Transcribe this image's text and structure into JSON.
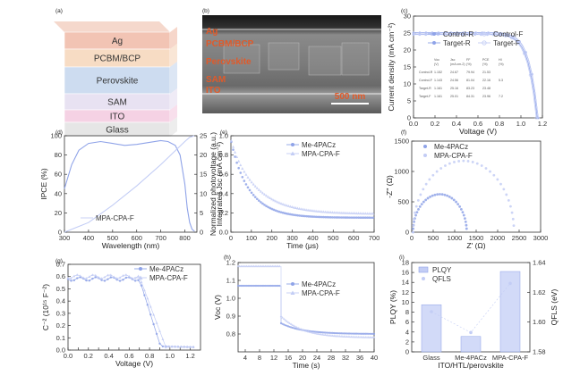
{
  "panel_labels": [
    "(a)",
    "(b)",
    "(c)",
    "(d)",
    "(e)",
    "(f)",
    "(g)",
    "(h)",
    "(i)"
  ],
  "colors": {
    "accent": "#8fa3e8",
    "accent_light": "#c3cdf5",
    "axis": "#333333",
    "sem_label": "#e05a2a"
  },
  "device_stack": {
    "layers": [
      {
        "name": "Ag",
        "color": "#f2c4b4"
      },
      {
        "name": "PCBM/BCP",
        "color": "#f7dcc4"
      },
      {
        "name": "Perovskite",
        "color": "#cddcf0"
      },
      {
        "name": "SAM",
        "color": "#e8e2f2"
      },
      {
        "name": "ITO",
        "color": "#f5d2e4"
      },
      {
        "name": "Glass",
        "color": "#e6e6e6"
      }
    ]
  },
  "sem": {
    "labels": [
      "Ag",
      "PCBM/BCP",
      "Perovskite",
      "SAM",
      "ITO"
    ],
    "scalebar": "500 nm"
  },
  "jv_table": {
    "headers": [
      "",
      "Voc",
      "Jsc",
      "FF",
      "PCE",
      "HI"
    ],
    "units": [
      "",
      "(V)",
      "(mA cm-2)",
      "(%)",
      "(%)",
      "(%)"
    ],
    "rows": [
      [
        "Control-R",
        "1.152",
        "24.67",
        "79.94",
        "21.53",
        ""
      ],
      [
        "Control-F",
        "1.143",
        "24.56",
        "81.04",
        "22.16",
        "5.3"
      ],
      [
        "Target-R",
        "1.161",
        "25.16",
        "83.23",
        "23.48",
        ""
      ],
      [
        "Target-F",
        "1.161",
        "25.01",
        "84.31",
        "23.96",
        "7.2"
      ]
    ]
  },
  "chart_data": [
    {
      "panel": "c",
      "type": "line",
      "xlabel": "Voltage (V)",
      "ylabel": "Current density (mA cm⁻²)",
      "xlim": [
        0,
        1.2
      ],
      "ylim": [
        0,
        30
      ],
      "xticks": [
        0.0,
        0.2,
        0.4,
        0.6,
        0.8,
        1.0,
        1.2
      ],
      "yticks": [
        0,
        5,
        10,
        15,
        20,
        25,
        30
      ],
      "series": [
        {
          "name": "Control-R",
          "jsc": 24.67,
          "voc": 1.152
        },
        {
          "name": "Control-F",
          "jsc": 24.56,
          "voc": 1.143
        },
        {
          "name": "Target-R",
          "jsc": 25.16,
          "voc": 1.161
        },
        {
          "name": "Target-F",
          "jsc": 25.01,
          "voc": 1.161
        }
      ],
      "legend": "top-right"
    },
    {
      "panel": "d",
      "type": "line",
      "xlabel": "Wavelength (nm)",
      "ylabel": "IPCE (%)",
      "y2label": "Integrated Jsc (mA cm⁻²)",
      "xlim": [
        300,
        850
      ],
      "ylim": [
        0,
        100
      ],
      "y2lim": [
        0,
        25
      ],
      "xticks": [
        300,
        400,
        500,
        600,
        700,
        800
      ],
      "yticks": [
        0,
        20,
        40,
        60,
        80,
        100
      ],
      "y2ticks": [
        0,
        5,
        10,
        15,
        20,
        25
      ],
      "series": [
        {
          "name": "MPA-CPA-F",
          "x": [
            300,
            330,
            360,
            400,
            450,
            500,
            550,
            600,
            650,
            700,
            730,
            760,
            780,
            800,
            810,
            820,
            830,
            840
          ],
          "y": [
            45,
            70,
            85,
            92,
            94,
            92,
            90,
            91,
            93,
            95,
            94,
            90,
            80,
            50,
            25,
            10,
            3,
            1
          ]
        },
        {
          "name": "Integrated Jsc",
          "x": [
            300,
            400,
            500,
            600,
            700,
            750,
            800,
            820,
            840
          ],
          "y": [
            0,
            2.5,
            7,
            12,
            17.5,
            20.5,
            23.5,
            24.6,
            25
          ]
        }
      ],
      "legend": "bottom-left"
    },
    {
      "panel": "e",
      "type": "scatter",
      "xlabel": "Time (μs)",
      "ylabel": "Normalized photovoltage (a.u.)",
      "xlim": [
        0,
        700
      ],
      "ylim": [
        0,
        1
      ],
      "xticks": [
        0,
        100,
        200,
        300,
        400,
        500,
        600,
        700
      ],
      "yticks": [
        0.0,
        0.2,
        0.4,
        0.6,
        0.8,
        1.0
      ],
      "series": [
        {
          "name": "Me-4PACz",
          "tau": 95,
          "floor": 0.12
        },
        {
          "name": "MPA-CPA-F",
          "tau": 130,
          "floor": 0.16
        }
      ],
      "legend": "top-right"
    },
    {
      "panel": "f",
      "type": "scatter",
      "xlabel": "Z' (Ω)",
      "ylabel": "-Z'' (Ω)",
      "xlim": [
        0,
        3000
      ],
      "ylim": [
        0,
        1500
      ],
      "xticks": [
        0,
        500,
        1000,
        1500,
        2000,
        2500,
        3000
      ],
      "yticks": [
        0,
        500,
        1000,
        1500
      ],
      "series": [
        {
          "name": "Me-4PACz",
          "r0": 30,
          "r1": 1250
        },
        {
          "name": "MPA-CPA-F",
          "r0": 30,
          "r1": 2350
        }
      ],
      "legend": "top-left"
    },
    {
      "panel": "g",
      "type": "scatter",
      "xlabel": "Voltage (V)",
      "ylabel": "C⁻² (10¹⁵ F⁻²)",
      "xlim": [
        0,
        1.3
      ],
      "ylim": [
        0,
        0.7
      ],
      "xticks": [
        0.0,
        0.1,
        0.2,
        0.3,
        0.4,
        0.5,
        0.6,
        0.7,
        0.8,
        0.9,
        1.0,
        1.1,
        1.2
      ],
      "yticks": [
        0.0,
        0.1,
        0.2,
        0.3,
        0.4,
        0.5,
        0.6,
        0.7
      ],
      "series": [
        {
          "name": "Me-4PACz",
          "plateau": 0.58,
          "vbi": 0.92
        },
        {
          "name": "MPA-CPA-F",
          "plateau": 0.6,
          "vbi": 0.97
        }
      ],
      "legend": "top-right"
    },
    {
      "panel": "h",
      "type": "scatter",
      "xlabel": "Time (s)",
      "ylabel": "Voc (V)",
      "xlim": [
        2,
        40
      ],
      "ylim": [
        0.7,
        1.2
      ],
      "xticks": [
        4,
        8,
        12,
        16,
        20,
        24,
        28,
        32,
        36,
        40
      ],
      "yticks": [
        0.8,
        0.9,
        1.0,
        1.1,
        1.2
      ],
      "series": [
        {
          "name": "Me-4PACz",
          "on": 1.07,
          "off_start": 0.86,
          "off_end": 0.8
        },
        {
          "name": "MPA-CPA-F",
          "on": 1.18,
          "off_start": 0.9,
          "off_end": 0.78
        }
      ],
      "legend": "top-right"
    },
    {
      "panel": "i",
      "type": "bar",
      "xlabel": "ITO/HTL/perovskite",
      "ylabel": "PLQY (%)",
      "y2label": "QFLS (eV)",
      "categories": [
        "Glass",
        "Me-4PACz",
        "MPA-CPA-F"
      ],
      "ylim": [
        0,
        18
      ],
      "y2lim": [
        1.58,
        1.64
      ],
      "yticks": [
        0,
        2,
        4,
        6,
        8,
        10,
        12,
        14,
        16,
        18
      ],
      "y2ticks": [
        1.58,
        1.6,
        1.62,
        1.64
      ],
      "series": [
        {
          "name": "PLQY",
          "values": [
            9.5,
            3.1,
            16.2
          ]
        },
        {
          "name": "QFLS",
          "values": [
            1.607,
            1.593,
            1.626
          ]
        }
      ],
      "legend": "top-left"
    }
  ]
}
